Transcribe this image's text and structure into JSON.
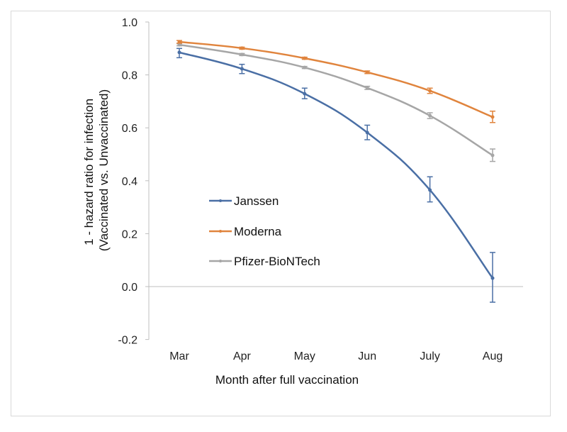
{
  "chart_data": {
    "type": "line",
    "title": "",
    "xlabel": "Month after full vaccination",
    "ylabel_lines": [
      "1 - hazard ratio for infection",
      "(Vaccinated vs. Unvaccinated)"
    ],
    "categories": [
      "Mar",
      "Apr",
      "May",
      "Jun",
      "July",
      "Aug"
    ],
    "ylim": [
      -0.2,
      1.0
    ],
    "yticks": [
      -0.2,
      0.0,
      0.2,
      0.4,
      0.6,
      0.8,
      1.0
    ],
    "ytick_labels": [
      "-0.2",
      "0.0",
      "0.2",
      "0.4",
      "0.6",
      "0.8",
      "1.0"
    ],
    "grid": false,
    "zero_line": true,
    "legend_position": "center-left",
    "series": [
      {
        "name": "Janssen",
        "color": "#4a6fa5",
        "values": [
          0.885,
          0.823,
          0.729,
          0.582,
          0.365,
          0.032
        ],
        "err_low": [
          0.865,
          0.805,
          0.71,
          0.555,
          0.32,
          -0.059
        ],
        "err_high": [
          0.9,
          0.84,
          0.75,
          0.61,
          0.415,
          0.129
        ]
      },
      {
        "name": "Moderna",
        "color": "#e0843d",
        "values": [
          0.925,
          0.901,
          0.863,
          0.81,
          0.74,
          0.641
        ],
        "err_low": [
          0.92,
          0.897,
          0.859,
          0.805,
          0.73,
          0.62
        ],
        "err_high": [
          0.93,
          0.905,
          0.867,
          0.815,
          0.75,
          0.663
        ]
      },
      {
        "name": "Pfizer-BioNTech",
        "color": "#a6a6a6",
        "values": [
          0.914,
          0.877,
          0.828,
          0.751,
          0.646,
          0.496
        ],
        "err_low": [
          0.91,
          0.873,
          0.824,
          0.745,
          0.635,
          0.473
        ],
        "err_high": [
          0.918,
          0.881,
          0.832,
          0.757,
          0.657,
          0.52
        ]
      }
    ]
  }
}
